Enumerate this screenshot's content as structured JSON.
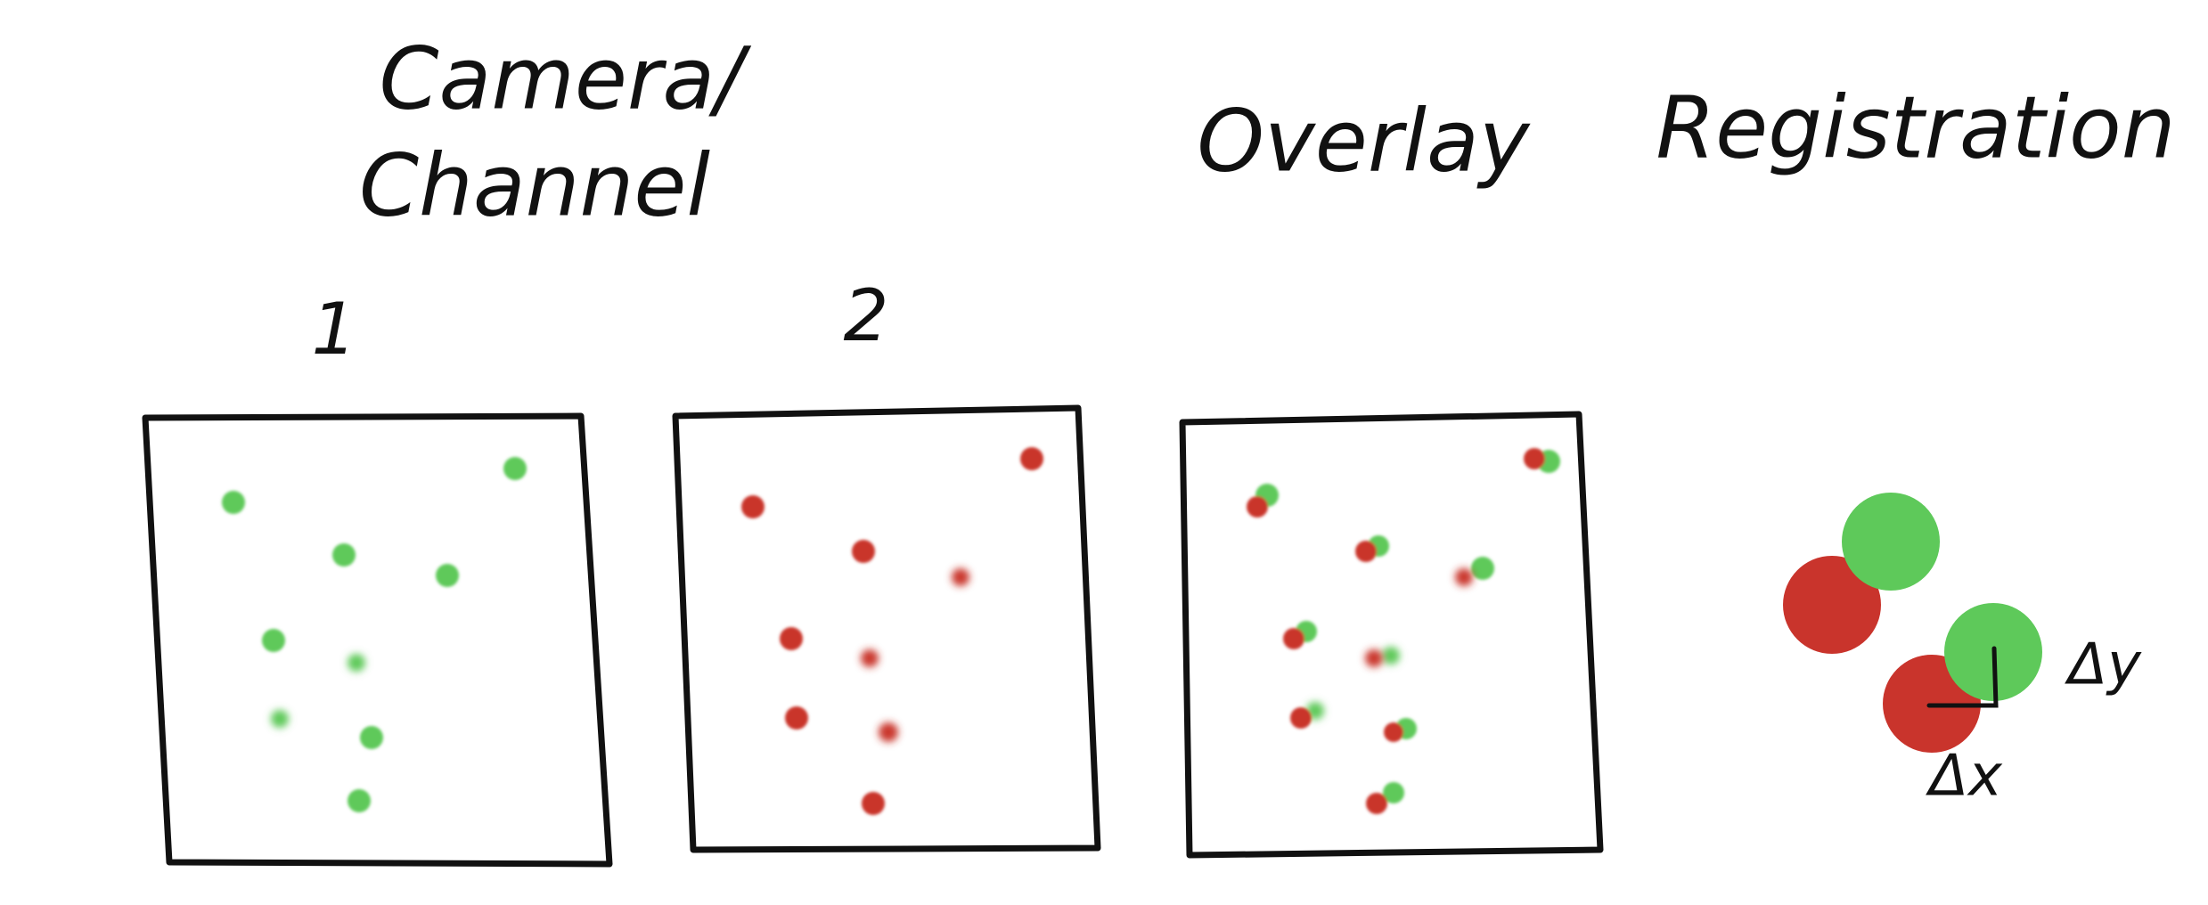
{
  "header": {
    "title_line1": "Camera/",
    "title_line2": "Channel",
    "overlay": "Overlay",
    "registration": "Registration"
  },
  "panels": {
    "label_1": "1",
    "label_2": "2"
  },
  "registration": {
    "dy": "Δy",
    "dx": "Δx"
  }
}
